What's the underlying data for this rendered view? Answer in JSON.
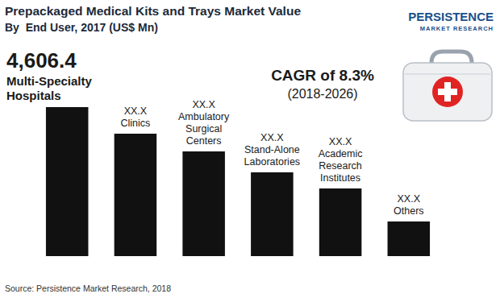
{
  "chart_data": {
    "type": "bar",
    "title": "Prepackaged Medical Kits and Trays Market Value",
    "subtitle": "By  End User, 2017 (US$ Mn)",
    "annotations": [
      "CAGR of 8.3%",
      "(2018-2026)"
    ],
    "source": "Source: Persistence Market Research, 2018",
    "logo": [
      "PERSISTENCE",
      "MARKET RESEARCH"
    ],
    "categories": [
      "Multi-Specialty Hospitals",
      "Clinics",
      "Ambulatory Surgical Centers",
      "Stand-Alone Laboratories",
      "Academic Research Institutes",
      "Others"
    ],
    "values": [
      4606.4,
      3785,
      3237,
      2590,
      2092,
      1071
    ],
    "value_labels": [
      "4,606.4",
      "XX.X",
      "XX.X",
      "XX.X",
      "XX.X",
      "XX.X"
    ],
    "data_labels": true,
    "tick_labels": false,
    "color": "#111111"
  }
}
